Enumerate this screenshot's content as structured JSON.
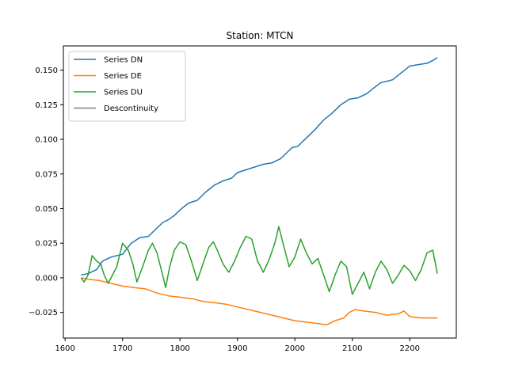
{
  "chart_data": {
    "type": "line",
    "title": "Station: MTCN",
    "xlabel": "",
    "ylabel": "",
    "xlim": [
      1597,
      2281
    ],
    "ylim": [
      -0.0435,
      0.1675
    ],
    "xticks": [
      1600,
      1700,
      1800,
      1900,
      2000,
      2100,
      2200
    ],
    "yticks": [
      -0.025,
      0.0,
      0.025,
      0.05,
      0.075,
      0.1,
      0.125,
      0.15
    ],
    "ytick_labels": [
      "−0.025",
      "0.000",
      "0.025",
      "0.050",
      "0.075",
      "0.100",
      "0.125",
      "0.150"
    ],
    "grid": false,
    "legend_position": "upper-left",
    "series": [
      {
        "name": "Series DN",
        "color": "#1f77b4",
        "x": [
          1628,
          1640,
          1655,
          1665,
          1680,
          1700,
          1715,
          1730,
          1745,
          1760,
          1770,
          1780,
          1790,
          1800,
          1815,
          1830,
          1845,
          1860,
          1875,
          1890,
          1900,
          1915,
          1930,
          1945,
          1960,
          1975,
          1985,
          1995,
          2005,
          2020,
          2035,
          2050,
          2065,
          2080,
          2095,
          2110,
          2125,
          2140,
          2150,
          2160,
          2170,
          2185,
          2200,
          2215,
          2230,
          2240,
          2248
        ],
        "y": [
          0.002,
          0.003,
          0.006,
          0.012,
          0.015,
          0.017,
          0.025,
          0.029,
          0.03,
          0.036,
          0.04,
          0.042,
          0.045,
          0.049,
          0.054,
          0.056,
          0.062,
          0.067,
          0.07,
          0.072,
          0.076,
          0.078,
          0.08,
          0.082,
          0.083,
          0.086,
          0.09,
          0.094,
          0.095,
          0.101,
          0.107,
          0.114,
          0.119,
          0.125,
          0.129,
          0.13,
          0.133,
          0.138,
          0.141,
          0.142,
          0.143,
          0.148,
          0.153,
          0.154,
          0.155,
          0.157,
          0.159
        ]
      },
      {
        "name": "Series DE",
        "color": "#ff7f0e",
        "x": [
          1628,
          1640,
          1660,
          1680,
          1700,
          1720,
          1740,
          1760,
          1780,
          1800,
          1820,
          1840,
          1860,
          1880,
          1900,
          1920,
          1940,
          1960,
          1980,
          2000,
          2020,
          2040,
          2055,
          2070,
          2085,
          2095,
          2105,
          2120,
          2140,
          2160,
          2180,
          2190,
          2200,
          2220,
          2235,
          2248
        ],
        "y": [
          0.0,
          -0.001,
          -0.002,
          -0.004,
          -0.006,
          -0.007,
          -0.008,
          -0.011,
          -0.013,
          -0.014,
          -0.015,
          -0.017,
          -0.018,
          -0.019,
          -0.021,
          -0.023,
          -0.025,
          -0.027,
          -0.029,
          -0.031,
          -0.032,
          -0.033,
          -0.034,
          -0.031,
          -0.029,
          -0.025,
          -0.023,
          -0.024,
          -0.025,
          -0.027,
          -0.026,
          -0.024,
          -0.028,
          -0.029,
          -0.029,
          -0.029
        ]
      },
      {
        "name": "Series DU",
        "color": "#2ca02c",
        "x": [
          1628,
          1633,
          1640,
          1647,
          1655,
          1662,
          1668,
          1675,
          1690,
          1700,
          1710,
          1718,
          1725,
          1735,
          1745,
          1752,
          1760,
          1768,
          1775,
          1782,
          1790,
          1800,
          1810,
          1820,
          1830,
          1840,
          1850,
          1858,
          1865,
          1875,
          1885,
          1895,
          1905,
          1915,
          1925,
          1935,
          1945,
          1955,
          1965,
          1972,
          1980,
          1990,
          2000,
          2010,
          2020,
          2030,
          2040,
          2050,
          2060,
          2070,
          2080,
          2090,
          2100,
          2110,
          2120,
          2130,
          2140,
          2150,
          2160,
          2170,
          2180,
          2190,
          2200,
          2210,
          2220,
          2230,
          2240,
          2248
        ],
        "y": [
          0.0,
          -0.003,
          0.002,
          0.016,
          0.012,
          0.01,
          0.002,
          -0.004,
          0.008,
          0.025,
          0.02,
          0.01,
          -0.003,
          0.008,
          0.02,
          0.025,
          0.018,
          0.005,
          -0.007,
          0.008,
          0.02,
          0.026,
          0.024,
          0.012,
          -0.002,
          0.01,
          0.022,
          0.026,
          0.02,
          0.01,
          0.004,
          0.012,
          0.022,
          0.03,
          0.028,
          0.012,
          0.004,
          0.013,
          0.025,
          0.037,
          0.024,
          0.008,
          0.015,
          0.028,
          0.018,
          0.01,
          0.014,
          0.002,
          -0.01,
          0.002,
          0.012,
          0.008,
          -0.012,
          -0.004,
          0.004,
          -0.008,
          0.004,
          0.012,
          0.006,
          -0.004,
          0.002,
          0.009,
          0.005,
          -0.002,
          0.006,
          0.018,
          0.02,
          0.003
        ]
      },
      {
        "name": "Descontinuity",
        "color": "#7f7f7f",
        "x": [],
        "y": []
      }
    ]
  }
}
